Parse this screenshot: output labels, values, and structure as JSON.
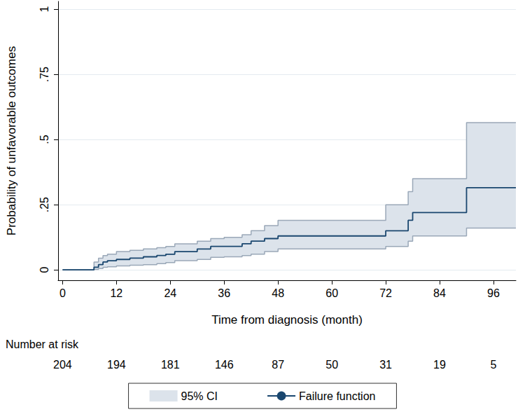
{
  "chart_data": {
    "type": "step",
    "y_label": "Probability of unfavorable outcomes",
    "x_label": "Time from diagnosis (month)",
    "xlim": [
      -1,
      101
    ],
    "xticks": [
      0,
      12,
      24,
      36,
      48,
      60,
      72,
      84,
      96
    ],
    "ylim": [
      -0.04,
      1.03
    ],
    "yticks": [
      {
        "value": 0,
        "label": "0"
      },
      {
        "value": 0.25,
        "label": ".25"
      },
      {
        "value": 0.5,
        "label": ".5"
      },
      {
        "value": 0.75,
        "label": ".75"
      },
      {
        "value": 1,
        "label": "1"
      }
    ],
    "grid": true,
    "legend": "bottom",
    "series": [
      {
        "name": "Failure function",
        "color": "#1a476f",
        "line_style": "step",
        "x": [
          0,
          7,
          8,
          9,
          10,
          12,
          15,
          18,
          21,
          23,
          25,
          30,
          33,
          36,
          40,
          42,
          45,
          48,
          72,
          77,
          78,
          90,
          101
        ],
        "values": [
          0,
          0.01,
          0.02,
          0.03,
          0.035,
          0.04,
          0.045,
          0.05,
          0.055,
          0.06,
          0.07,
          0.08,
          0.09,
          0.09,
          0.1,
          0.11,
          0.12,
          0.13,
          0.15,
          0.19,
          0.22,
          0.315,
          0.315
        ]
      }
    ],
    "band": {
      "name": "95% CI",
      "color": "#dce3eb",
      "x": [
        0,
        7,
        8,
        9,
        10,
        12,
        15,
        18,
        21,
        23,
        25,
        30,
        33,
        36,
        40,
        42,
        45,
        48,
        72,
        77,
        78,
        90,
        101
      ],
      "lower": [
        0,
        0.002,
        0.005,
        0.01,
        0.012,
        0.015,
        0.018,
        0.02,
        0.024,
        0.028,
        0.035,
        0.04,
        0.048,
        0.05,
        0.055,
        0.06,
        0.07,
        0.08,
        0.09,
        0.11,
        0.13,
        0.16,
        0.16
      ],
      "upper": [
        0,
        0.03,
        0.045,
        0.055,
        0.06,
        0.07,
        0.075,
        0.08,
        0.085,
        0.09,
        0.1,
        0.11,
        0.12,
        0.125,
        0.135,
        0.15,
        0.17,
        0.19,
        0.25,
        0.3,
        0.35,
        0.565,
        0.565
      ]
    },
    "number_at_risk": {
      "label": "Number at risk",
      "x": [
        0,
        12,
        24,
        36,
        48,
        60,
        72,
        84,
        96
      ],
      "values": [
        204,
        194,
        181,
        146,
        87,
        50,
        31,
        19,
        5
      ]
    }
  }
}
